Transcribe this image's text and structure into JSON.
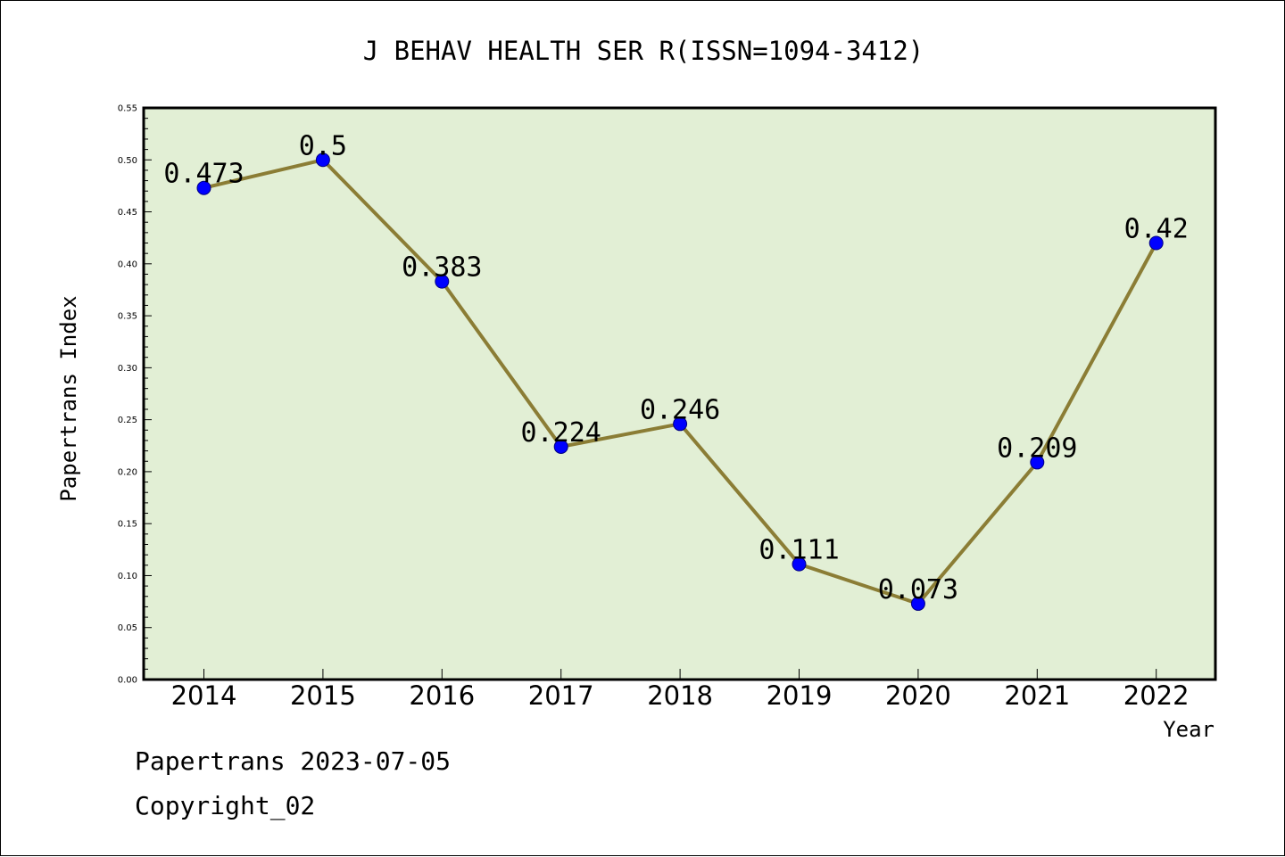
{
  "chart_data": {
    "type": "line",
    "title": "J BEHAV HEALTH SER R(ISSN=1094-3412)",
    "xlabel": "Year",
    "ylabel": "Papertrans Index",
    "categories": [
      "2014",
      "2015",
      "2016",
      "2017",
      "2018",
      "2019",
      "2020",
      "2021",
      "2022"
    ],
    "series": [
      {
        "values": [
          0.473,
          0.5,
          0.383,
          0.224,
          0.246,
          0.111,
          0.073,
          0.209,
          0.42
        ],
        "labels": [
          "0.473",
          "0.5",
          "0.383",
          "0.224",
          "0.246",
          "0.111",
          "0.073",
          "0.209",
          "0.42"
        ]
      }
    ],
    "ylim": [
      0,
      0.55
    ],
    "yticks": [
      "0.00",
      "0.05",
      "0.10",
      "0.15",
      "0.20",
      "0.25",
      "0.30",
      "0.35",
      "0.40",
      "0.45",
      "0.50",
      "0.55"
    ],
    "grid": false,
    "colors": {
      "plot_background": "#e2efd5",
      "line": "#8b7d35",
      "marker": "#0000ff"
    }
  },
  "footer": {
    "line1": "Papertrans 2023-07-05",
    "line2": "Copyright_02"
  }
}
